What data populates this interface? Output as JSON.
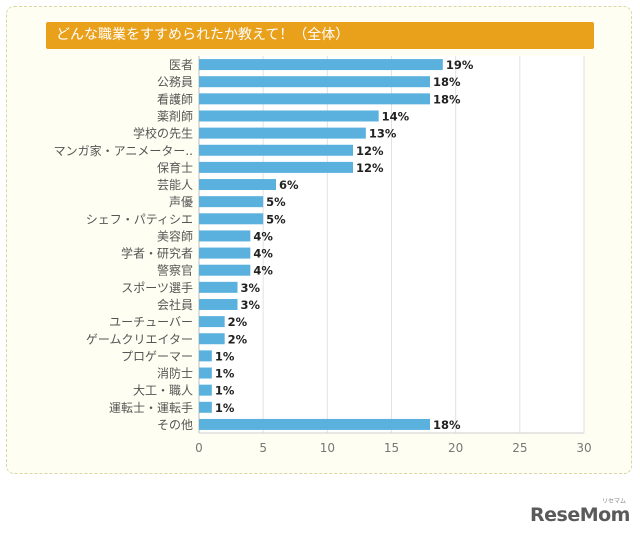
{
  "chart_data": {
    "type": "bar",
    "orientation": "horizontal",
    "title": "どんな職業をすすめられたか教えて！（全体）",
    "categories": [
      "医者",
      "公務員",
      "看護師",
      "薬剤師",
      "学校の先生",
      "マンガ家・アニメーター..",
      "保育士",
      "芸能人",
      "声優",
      "シェフ・パティシエ",
      "美容師",
      "学者・研究者",
      "警察官",
      "スポーツ選手",
      "会社員",
      "ユーチューバー",
      "ゲームクリエイター",
      "プロゲーマー",
      "消防士",
      "大工・職人",
      "運転士・運転手",
      "その他"
    ],
    "values": [
      19,
      18,
      18,
      14,
      13,
      12,
      12,
      6,
      5,
      5,
      4,
      4,
      4,
      3,
      3,
      2,
      2,
      1,
      1,
      1,
      1,
      18
    ],
    "value_labels": [
      "19%",
      "18%",
      "18%",
      "14%",
      "13%",
      "12%",
      "12%",
      "6%",
      "5%",
      "5%",
      "4%",
      "4%",
      "4%",
      "3%",
      "3%",
      "2%",
      "2%",
      "1%",
      "1%",
      "1%",
      "1%",
      "18%"
    ],
    "xlim": [
      0,
      30
    ],
    "x_ticks": [
      "0",
      "5",
      "10",
      "15",
      "20",
      "25",
      "30"
    ],
    "xlabel": "",
    "ylabel": "",
    "grid": true,
    "colors": {
      "bar": "#5ab1de",
      "header": "#e9a01b",
      "grid": "#e2e2e2",
      "text": "#555555"
    }
  },
  "brand": {
    "name": "ReseMom",
    "kana": "リセマム"
  }
}
